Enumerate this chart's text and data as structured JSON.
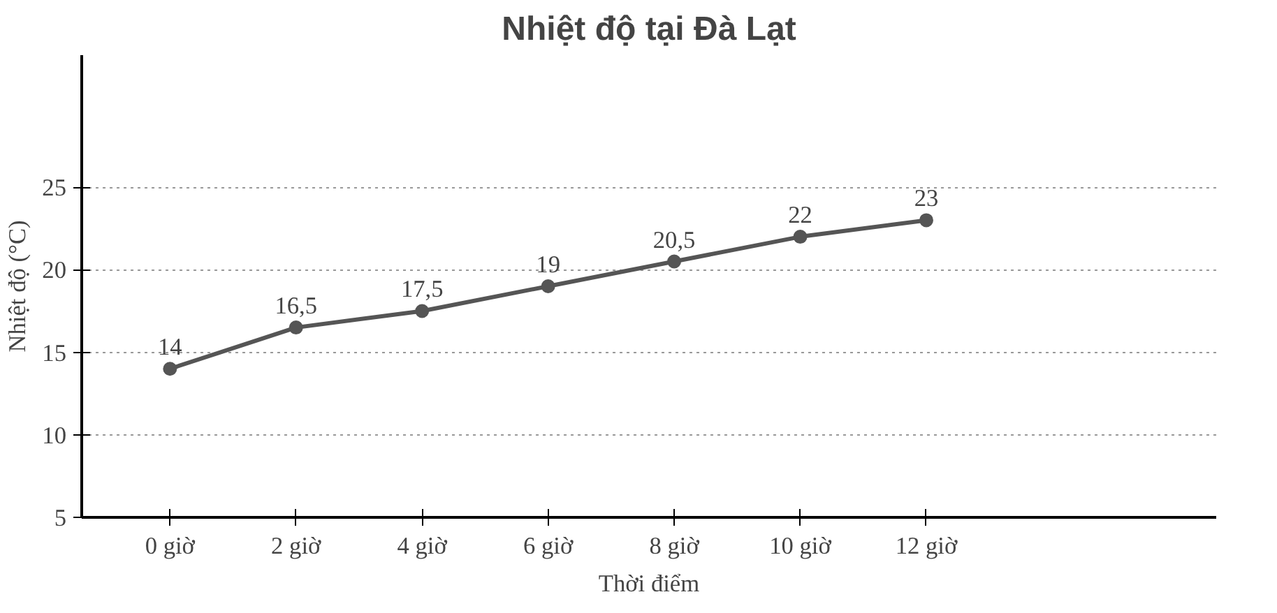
{
  "chart_data": {
    "type": "line",
    "title": "Nhiệt độ tại Đà Lạt",
    "xlabel": "Thời điểm",
    "ylabel": "Nhiệt độ (°C)",
    "categories": [
      "0 giờ",
      "2 giờ",
      "4 giờ",
      "6 giờ",
      "8 giờ",
      "10 giờ",
      "12 giờ"
    ],
    "series": [
      {
        "color": "#555555",
        "values": [
          14,
          16.5,
          17.5,
          19,
          20.5,
          22,
          23
        ],
        "value_labels": [
          "14",
          "16,5",
          "17,5",
          "19",
          "20,5",
          "22",
          "23"
        ]
      }
    ],
    "ylim": [
      5,
      33
    ],
    "yticks": [
      5,
      10,
      15,
      20,
      25
    ],
    "grid": "y",
    "marker": "circle",
    "line_style": "solid"
  }
}
